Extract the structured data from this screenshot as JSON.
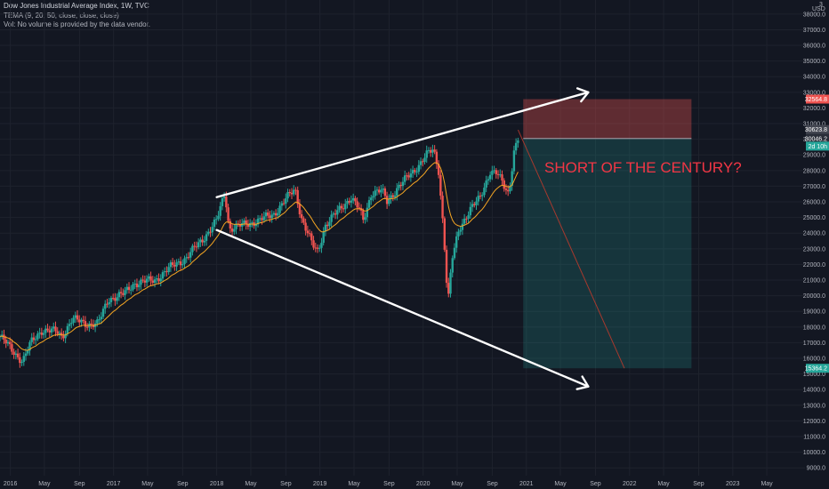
{
  "header": {
    "title": "Dow Jones Industrial Average Index, 1W, TVC",
    "indicator": "TEMA (9, 20, 50, close, close, close)",
    "volume_note": "Vol: No volume is provided by the data vendor."
  },
  "price_axis": {
    "currency": "USD",
    "top_label": "3"
  },
  "annotation": {
    "text": "SHORT OF THE CENTURY?",
    "color": "#f23645"
  },
  "position": {
    "target_label": "32564.8",
    "entry_label": "30046.2",
    "current_label": "30623.8",
    "countdown_label": "2d 10h",
    "stop_label": "15364.2",
    "profit_color": "#26a69a",
    "loss_color": "#ef5350"
  },
  "colors": {
    "background": "#131722",
    "grid": "#1e222d",
    "up": "#26a69a",
    "down": "#ef5350",
    "tema": "#f5a623",
    "trendline": "#ffffff",
    "text": "#b2b5be"
  },
  "chart_data": {
    "type": "candlestick",
    "title": "Dow Jones Industrial Average Index, 1W, TVC",
    "ylim": [
      8500,
      38900
    ],
    "y_ticks": [
      9000,
      10000,
      11000,
      12000,
      13000,
      14000,
      15000,
      16000,
      17000,
      18000,
      19000,
      20000,
      21000,
      22000,
      23000,
      24000,
      25000,
      26000,
      27000,
      28000,
      29000,
      30000,
      31000,
      32000,
      33000,
      34000,
      35000,
      36000,
      37000,
      38000
    ],
    "y_tick_labels": [
      "9000.0",
      "10000.0",
      "11000.0",
      "12000.0",
      "13000.0",
      "14000.0",
      "15000.0",
      "16000.0",
      "17000.0",
      "18000.0",
      "19000.0",
      "20000.0",
      "21000.0",
      "22000.0",
      "23000.0",
      "24000.0",
      "25000.0",
      "26000.0",
      "27000.0",
      "28000.0",
      "29000.0",
      "30000.0",
      "31000.0",
      "32000.0",
      "33000.0",
      "34000.0",
      "35000.0",
      "36000.0",
      "37000.0",
      "38000.0"
    ],
    "x_range": [
      2015.9,
      2023.7
    ],
    "x_ticks": [
      {
        "t": 2016.0,
        "label": "2016"
      },
      {
        "t": 2016.33,
        "label": "May"
      },
      {
        "t": 2016.67,
        "label": "Sep"
      },
      {
        "t": 2017.0,
        "label": "2017"
      },
      {
        "t": 2017.33,
        "label": "May"
      },
      {
        "t": 2017.67,
        "label": "Sep"
      },
      {
        "t": 2018.0,
        "label": "2018"
      },
      {
        "t": 2018.33,
        "label": "May"
      },
      {
        "t": 2018.67,
        "label": "Sep"
      },
      {
        "t": 2019.0,
        "label": "2019"
      },
      {
        "t": 2019.33,
        "label": "May"
      },
      {
        "t": 2019.67,
        "label": "Sep"
      },
      {
        "t": 2020.0,
        "label": "2020"
      },
      {
        "t": 2020.33,
        "label": "May"
      },
      {
        "t": 2020.67,
        "label": "Sep"
      },
      {
        "t": 2021.0,
        "label": "2021"
      },
      {
        "t": 2021.33,
        "label": "May"
      },
      {
        "t": 2021.67,
        "label": "Sep"
      },
      {
        "t": 2022.0,
        "label": "2022"
      },
      {
        "t": 2022.33,
        "label": "May"
      },
      {
        "t": 2022.67,
        "label": "Sep"
      },
      {
        "t": 2023.0,
        "label": "2023"
      },
      {
        "t": 2023.33,
        "label": "May"
      }
    ],
    "price_path": [
      [
        2015.9,
        17400
      ],
      [
        2016.05,
        16300
      ],
      [
        2016.12,
        15800
      ],
      [
        2016.2,
        17000
      ],
      [
        2016.3,
        17800
      ],
      [
        2016.45,
        17700
      ],
      [
        2016.5,
        17400
      ],
      [
        2016.6,
        18500
      ],
      [
        2016.75,
        18200
      ],
      [
        2016.85,
        18200
      ],
      [
        2016.95,
        19800
      ],
      [
        2017.1,
        20100
      ],
      [
        2017.2,
        20800
      ],
      [
        2017.4,
        21000
      ],
      [
        2017.55,
        21800
      ],
      [
        2017.7,
        22400
      ],
      [
        2017.85,
        23500
      ],
      [
        2018.0,
        24800
      ],
      [
        2018.08,
        26600
      ],
      [
        2018.12,
        24300
      ],
      [
        2018.25,
        24500
      ],
      [
        2018.4,
        24800
      ],
      [
        2018.55,
        25200
      ],
      [
        2018.7,
        26400
      ],
      [
        2018.76,
        26800
      ],
      [
        2018.82,
        25000
      ],
      [
        2018.93,
        23200
      ],
      [
        2018.98,
        22800
      ],
      [
        2019.05,
        24500
      ],
      [
        2019.3,
        26300
      ],
      [
        2019.38,
        25500
      ],
      [
        2019.42,
        24800
      ],
      [
        2019.5,
        26600
      ],
      [
        2019.6,
        26700
      ],
      [
        2019.65,
        26000
      ],
      [
        2019.75,
        26900
      ],
      [
        2019.9,
        27900
      ],
      [
        2020.03,
        29000
      ],
      [
        2020.1,
        29300
      ],
      [
        2020.15,
        28000
      ],
      [
        2020.2,
        24000
      ],
      [
        2020.24,
        19500
      ],
      [
        2020.28,
        22300
      ],
      [
        2020.35,
        24300
      ],
      [
        2020.45,
        25500
      ],
      [
        2020.55,
        26200
      ],
      [
        2020.65,
        28000
      ],
      [
        2020.72,
        27800
      ],
      [
        2020.78,
        27000
      ],
      [
        2020.83,
        26500
      ],
      [
        2020.88,
        29300
      ],
      [
        2020.92,
        30046
      ]
    ],
    "series": [
      {
        "name": "TEMA (9, 20, 50, close, close, close)",
        "values": "smoothed close"
      }
    ],
    "trendlines": [
      {
        "from": [
          2018.0,
          26300
        ],
        "to": [
          2021.6,
          33000
        ]
      },
      {
        "from": [
          2018.0,
          24200
        ],
        "to": [
          2021.6,
          14200
        ]
      },
      {
        "from": [
          2020.92,
          30600
        ],
        "to": [
          2021.95,
          15364
        ]
      }
    ],
    "position": {
      "x_start": 2020.97,
      "x_end": 2022.6,
      "entry": 30046.2,
      "target": 32564.8,
      "stop": 15364.2
    }
  }
}
